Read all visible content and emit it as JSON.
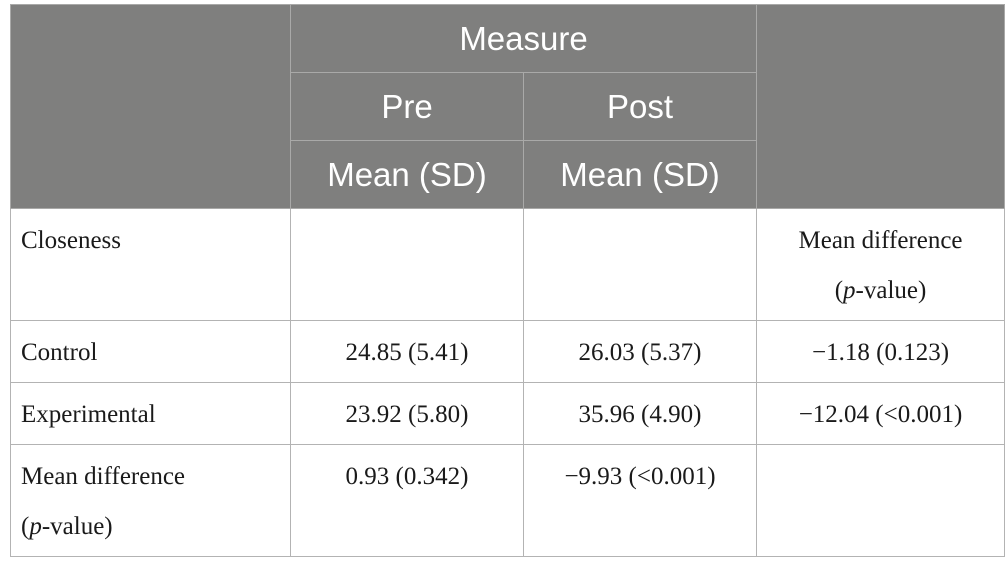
{
  "header": {
    "measure": "Measure",
    "pre": "Pre",
    "post": "Post",
    "pre_stat": "Mean (SD)",
    "post_stat": "Mean (SD)"
  },
  "rows": {
    "closeness": {
      "label": "Closeness",
      "pre": "",
      "post": "",
      "diff_line1": "Mean difference",
      "diff_open": "(",
      "diff_p": "p",
      "diff_rest": "-value)"
    },
    "control": {
      "label": "Control",
      "pre": "24.85 (5.41)",
      "post": "26.03 (5.37)",
      "diff": "−1.18 (0.123)"
    },
    "experimental": {
      "label": "Experimental",
      "pre": "23.92 (5.80)",
      "post": "35.96 (4.90)",
      "diff": "−12.04 (<0.001)"
    },
    "mean_difference": {
      "label_line1": "Mean difference",
      "label_open": "(",
      "label_p": "p",
      "label_rest": "-value)",
      "pre": "0.93 (0.342)",
      "post": "−9.93 (<0.001)",
      "diff": ""
    }
  },
  "colors": {
    "header_bg": "#7f7f7e",
    "header_text": "#ffffff",
    "border": "#b3b3b3",
    "body_text": "#1a1a1a"
  }
}
